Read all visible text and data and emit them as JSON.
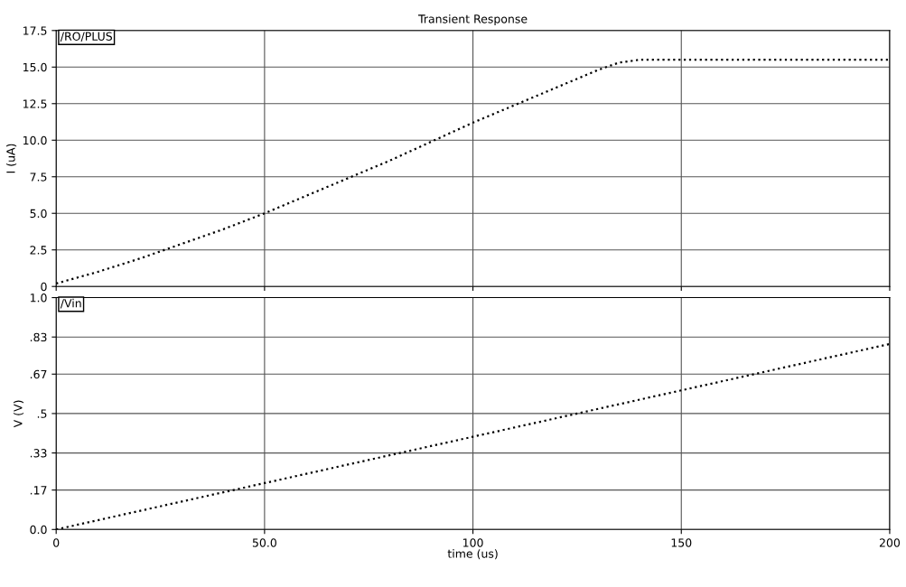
{
  "chart_data": [
    {
      "type": "line",
      "title": "Transient Response",
      "ylabel": "I (uA)",
      "x": [
        0,
        10,
        20,
        30,
        40,
        50,
        60,
        70,
        80,
        90,
        100,
        110,
        120,
        130,
        135,
        140,
        150,
        160,
        170,
        180,
        190,
        200
      ],
      "series": [
        {
          "name": "/RO/PLUS",
          "color": "#000000",
          "values": [
            0.2,
            1.0,
            1.9,
            2.9,
            3.9,
            5.0,
            6.2,
            7.4,
            8.6,
            9.9,
            11.2,
            12.4,
            13.6,
            14.8,
            15.3,
            15.5,
            15.5,
            15.5,
            15.5,
            15.5,
            15.5,
            15.5
          ]
        }
      ],
      "xlim": [
        0,
        200
      ],
      "xticks": [
        0,
        50,
        100,
        150,
        200
      ],
      "ylim": [
        0,
        17.5
      ],
      "yticks": [
        0,
        2.5,
        {
          "value": 5,
          "label": "5.0"
        },
        7.5,
        {
          "value": 10,
          "label": "10.0"
        },
        12.5,
        {
          "value": 15,
          "label": "15.0"
        },
        17.5
      ],
      "tick_labels": "y",
      "grid": true,
      "line_style": "dotted",
      "marker": "none"
    },
    {
      "type": "line",
      "xlabel": "time (us)",
      "ylabel": "V (V)",
      "x": [
        0,
        50,
        100,
        150,
        200
      ],
      "series": [
        {
          "name": "/Vin",
          "color": "#000000",
          "values": [
            0,
            0.2,
            0.4,
            0.6,
            0.8
          ]
        }
      ],
      "xlim": [
        0,
        200
      ],
      "xticks": [
        0,
        {
          "value": 50,
          "label": "50.0"
        },
        100,
        150,
        200
      ],
      "ylim": [
        0,
        1.0
      ],
      "yticks": [
        {
          "value": 0,
          "label": "0.0"
        },
        {
          "value": 0.17,
          "label": ".17"
        },
        {
          "value": 0.33,
          "label": ".33"
        },
        {
          "value": 0.5,
          "label": ".5"
        },
        {
          "value": 0.67,
          "label": ".67"
        },
        {
          "value": 0.83,
          "label": ".83"
        },
        {
          "value": 1.0,
          "label": "1.0"
        }
      ],
      "grid": true,
      "line_style": "dotted",
      "marker": "none"
    }
  ]
}
